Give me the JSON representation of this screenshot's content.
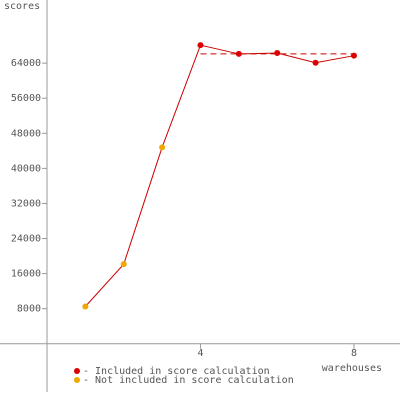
{
  "chart_data": {
    "type": "line",
    "y_label": "scores",
    "x_label": "warehouses",
    "x": [
      1,
      2,
      3,
      4,
      5,
      6,
      7,
      8
    ],
    "series": [
      {
        "name": "- Included in score calculation",
        "color": "#dd0000",
        "values": [
          null,
          null,
          null,
          68100,
          66100,
          66300,
          64100,
          65700
        ]
      },
      {
        "name": "- Not included in score calculation",
        "color": "#f0a800",
        "values": [
          8500,
          18150,
          44800,
          null,
          null,
          null,
          null,
          null
        ]
      }
    ],
    "line_color": "#cc0000",
    "score_line": {
      "value": 66100,
      "from": 4,
      "to": 8
    },
    "xlim": [
      0,
      9.2
    ],
    "xticks": [
      4,
      8
    ],
    "ylim": [
      -11000,
      78400
    ],
    "yticks": [
      8000,
      16000,
      24000,
      32000,
      40000,
      48000,
      56000,
      64000
    ]
  }
}
